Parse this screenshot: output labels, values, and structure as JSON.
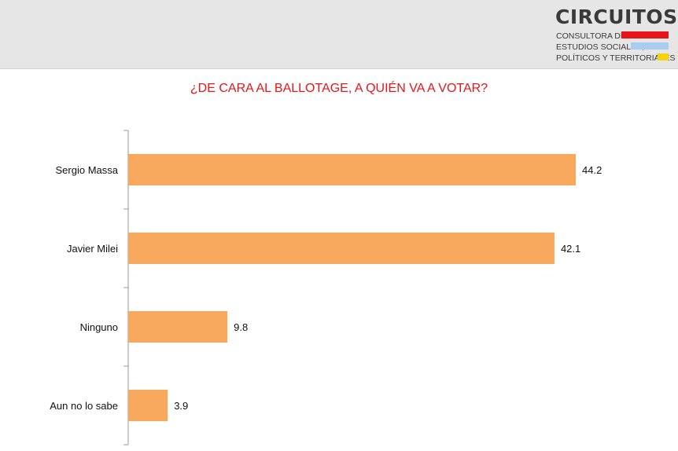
{
  "logo": {
    "title": "CIRCUITOS",
    "line1": "CONSULTORA DE",
    "line2": "ESTUDIOS SOCIALES,",
    "line3": "POLÍTICOS Y TERRITORIALES",
    "colors": {
      "red": "#e8141a",
      "blue": "#a9cdf0",
      "yellow": "#f5d20f"
    }
  },
  "chart_data": {
    "type": "bar",
    "orientation": "horizontal",
    "title": "¿DE CARA AL BALLOTAGE, A QUIÉN VA A VOTAR?",
    "categories": [
      "Sergio Massa",
      "Javier Milei",
      "Ninguno",
      "Aun no lo sabe"
    ],
    "values": [
      44.2,
      42.1,
      9.8,
      3.9
    ],
    "data_labels": [
      "44.2",
      "42.1",
      "9.8",
      "3.9"
    ],
    "xlim": [
      0,
      45
    ],
    "grid": false,
    "legend": "none",
    "bar_color": "#f9a95e",
    "title_color": "#e8141a"
  }
}
